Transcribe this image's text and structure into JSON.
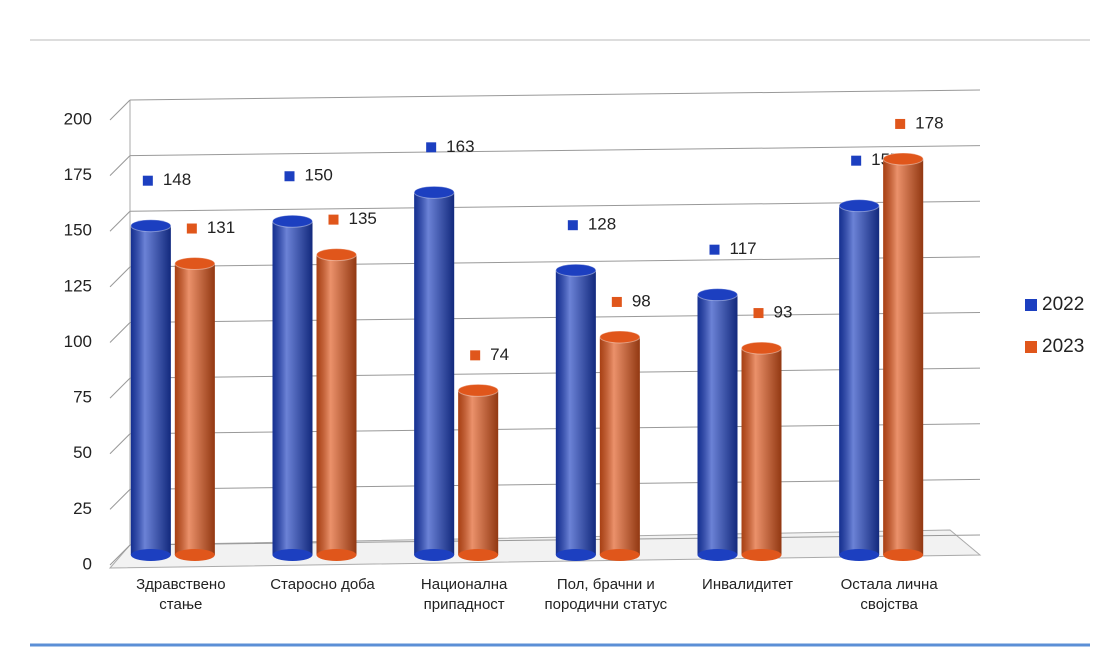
{
  "chart_data": {
    "type": "bar",
    "categories": [
      "Здравствено стање",
      "Старосно доба",
      "Национална припадност",
      "Пол, брачни и породични статус",
      "Инвалидитет",
      "Остала лична својства"
    ],
    "series": [
      {
        "name": "2022",
        "color": "#1c3fc0",
        "values": [
          148,
          150,
          163,
          128,
          117,
          157
        ]
      },
      {
        "name": "2023",
        "color": "#e0561b",
        "values": [
          131,
          135,
          74,
          98,
          93,
          178
        ]
      }
    ],
    "ylim": [
      0,
      200
    ],
    "yticks": [
      0,
      25,
      50,
      75,
      100,
      125,
      150,
      175,
      200
    ],
    "grid": true
  }
}
